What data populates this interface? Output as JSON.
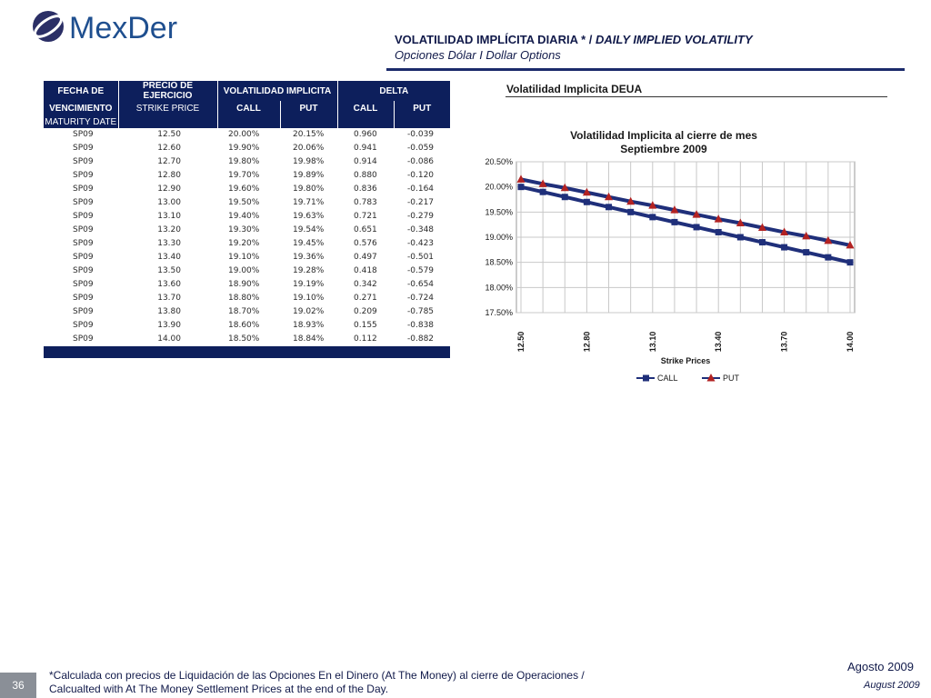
{
  "logo": {
    "text": "MexDer"
  },
  "header": {
    "title_es": "VOLATILIDAD IMPLÍCITA DIARIA * / ",
    "title_en": "DAILY IMPLIED VOLATILITY",
    "subtitle": "Opciones Dólar I Dollar Options"
  },
  "table": {
    "head": {
      "col0_line1": "FECHA DE",
      "col0_line2": "VENCIMIENTO",
      "col0_line3": "MATURITY DATE",
      "col1_line1": "PRECIO DE EJERCICIO",
      "col1_line2": "STRIKE PRICE",
      "vol": "VOLATILIDAD IMPLICITA",
      "delta": "DELTA",
      "call": "CALL",
      "put": "PUT"
    },
    "rows": [
      [
        "SP09",
        "12.50",
        "20.00%",
        "20.15%",
        "0.960",
        "-0.039"
      ],
      [
        "SP09",
        "12.60",
        "19.90%",
        "20.06%",
        "0.941",
        "-0.059"
      ],
      [
        "SP09",
        "12.70",
        "19.80%",
        "19.98%",
        "0.914",
        "-0.086"
      ],
      [
        "SP09",
        "12.80",
        "19.70%",
        "19.89%",
        "0.880",
        "-0.120"
      ],
      [
        "SP09",
        "12.90",
        "19.60%",
        "19.80%",
        "0.836",
        "-0.164"
      ],
      [
        "SP09",
        "13.00",
        "19.50%",
        "19.71%",
        "0.783",
        "-0.217"
      ],
      [
        "SP09",
        "13.10",
        "19.40%",
        "19.63%",
        "0.721",
        "-0.279"
      ],
      [
        "SP09",
        "13.20",
        "19.30%",
        "19.54%",
        "0.651",
        "-0.348"
      ],
      [
        "SP09",
        "13.30",
        "19.20%",
        "19.45%",
        "0.576",
        "-0.423"
      ],
      [
        "SP09",
        "13.40",
        "19.10%",
        "19.36%",
        "0.497",
        "-0.501"
      ],
      [
        "SP09",
        "13.50",
        "19.00%",
        "19.28%",
        "0.418",
        "-0.579"
      ],
      [
        "SP09",
        "13.60",
        "18.90%",
        "19.19%",
        "0.342",
        "-0.654"
      ],
      [
        "SP09",
        "13.70",
        "18.80%",
        "19.10%",
        "0.271",
        "-0.724"
      ],
      [
        "SP09",
        "13.80",
        "18.70%",
        "19.02%",
        "0.209",
        "-0.785"
      ],
      [
        "SP09",
        "13.90",
        "18.60%",
        "18.93%",
        "0.155",
        "-0.838"
      ],
      [
        "SP09",
        "14.00",
        "18.50%",
        "18.84%",
        "0.112",
        "-0.882"
      ]
    ]
  },
  "chart_heading": "Volatilidad Implicita DEUA",
  "chart_data": {
    "type": "line",
    "title": "Volatilidad Implicita  al cierre de mes",
    "subtitle": "Septiembre 2009",
    "xlabel": "Strike Prices",
    "ylabel": "",
    "x": [
      12.5,
      12.6,
      12.7,
      12.8,
      12.9,
      13.0,
      13.1,
      13.2,
      13.3,
      13.4,
      13.5,
      13.6,
      13.7,
      13.8,
      13.9,
      14.0
    ],
    "x_tick_labels": [
      "12.50",
      "12.80",
      "13.10",
      "13.40",
      "13.70",
      "14.00"
    ],
    "x_tick_values": [
      12.5,
      12.8,
      13.1,
      13.4,
      13.7,
      14.0
    ],
    "ylim": [
      17.5,
      20.5
    ],
    "y_ticks": [
      17.5,
      18.0,
      18.5,
      19.0,
      19.5,
      20.0,
      20.5
    ],
    "y_tick_labels": [
      "17.50%",
      "18.00%",
      "18.50%",
      "19.00%",
      "19.50%",
      "20.00%",
      "20.50%"
    ],
    "grid": true,
    "legend": "bottom",
    "series": [
      {
        "name": "CALL",
        "color": "#1f2f7a",
        "marker": "square",
        "values": [
          20.0,
          19.9,
          19.8,
          19.7,
          19.6,
          19.5,
          19.4,
          19.3,
          19.2,
          19.1,
          19.0,
          18.9,
          18.8,
          18.7,
          18.6,
          18.5
        ]
      },
      {
        "name": "PUT",
        "color": "#1f2f7a",
        "marker_color": "#b22222",
        "marker": "triangle",
        "values": [
          20.15,
          20.06,
          19.98,
          19.89,
          19.8,
          19.71,
          19.63,
          19.54,
          19.45,
          19.36,
          19.28,
          19.19,
          19.1,
          19.02,
          18.93,
          18.84
        ]
      }
    ]
  },
  "footer": {
    "page": "36",
    "note_line1": "*Calculada con precios de Liquidación de las Opciones En el Dinero (At The Money) al cierre de Operaciones /",
    "note_line2": "Calcualted with At The Money Settlement Prices at the end of the Day.",
    "month_es": "Agosto 2009",
    "month_en": "August 2009"
  }
}
